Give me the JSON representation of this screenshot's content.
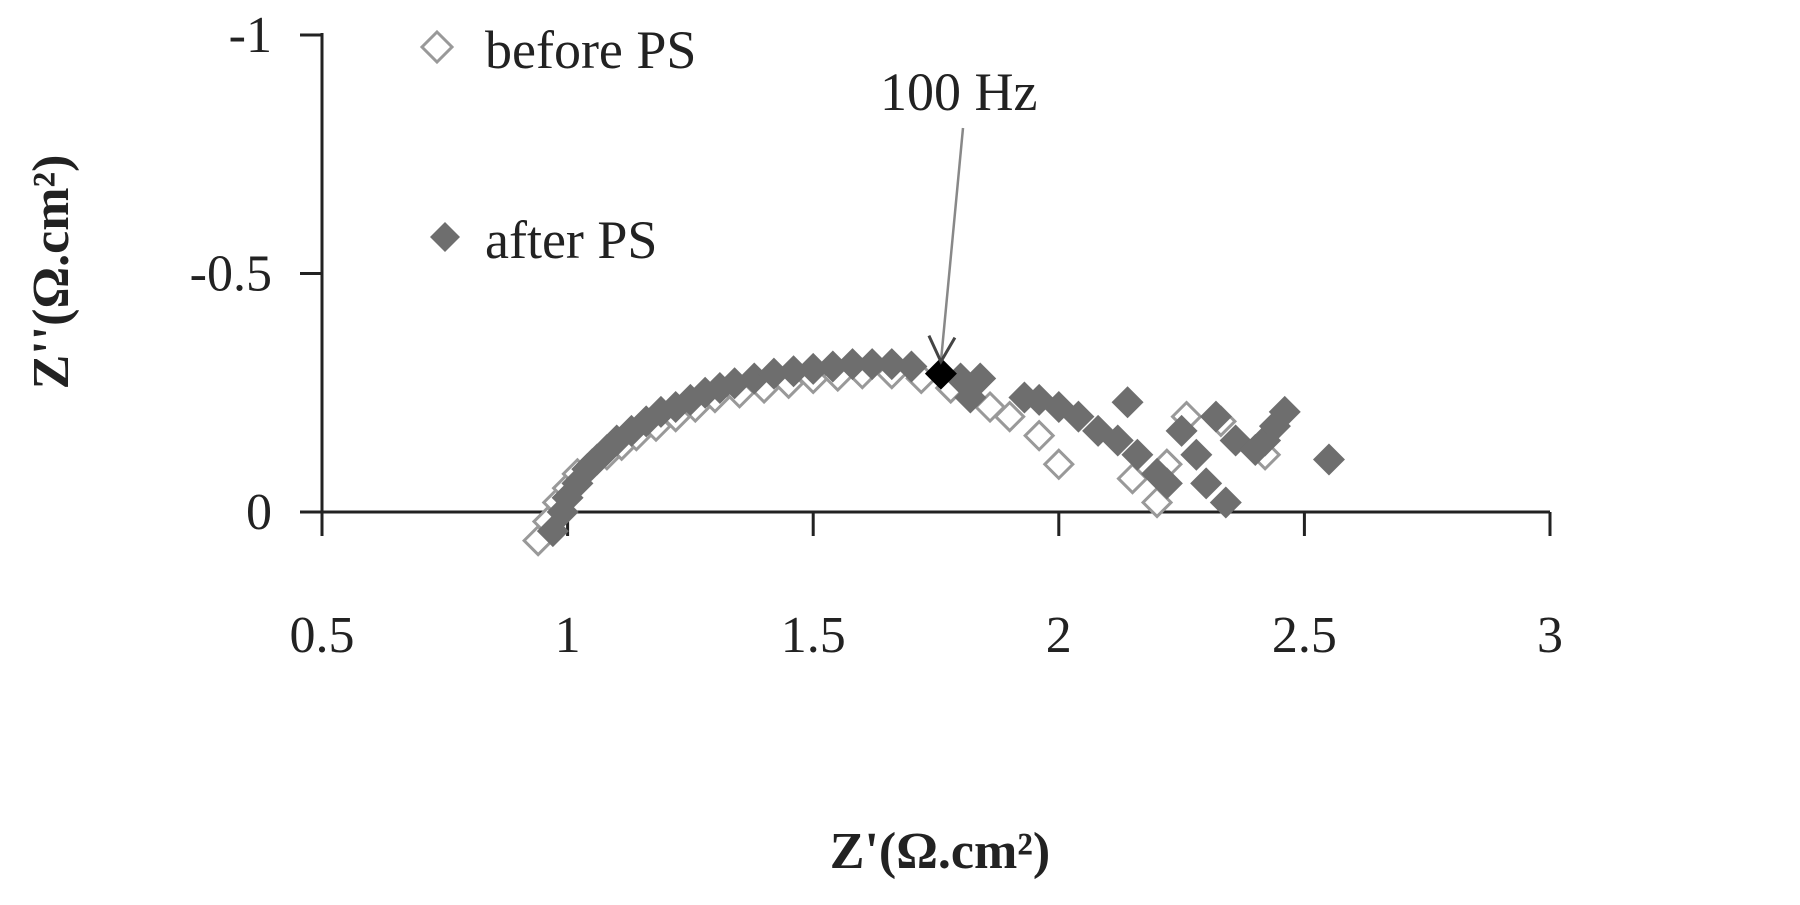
{
  "chart_data": {
    "type": "scatter",
    "xlabel": "Z'(Ω.cm²)",
    "ylabel": "Z''(Ω.cm²)",
    "xlim": [
      0.5,
      3
    ],
    "ylim": [
      0,
      -1
    ],
    "x_ticks": [
      "0.5",
      "1",
      "1.5",
      "2",
      "2.5",
      "3"
    ],
    "y_ticks": [
      "-1",
      "-0.5",
      "0"
    ],
    "grid": false,
    "legend_position": "top-left",
    "annotation": {
      "text": "100 Hz",
      "x": 1.76,
      "y": -0.29,
      "color": "#000000"
    },
    "series": [
      {
        "name": "before PS",
        "marker": "hollow-diamond",
        "color": "#999999",
        "points": [
          [
            0.94,
            0.06
          ],
          [
            0.96,
            0.02
          ],
          [
            0.98,
            -0.02
          ],
          [
            1.0,
            -0.05
          ],
          [
            1.02,
            -0.08
          ],
          [
            1.05,
            -0.1
          ],
          [
            1.08,
            -0.12
          ],
          [
            1.11,
            -0.14
          ],
          [
            1.14,
            -0.16
          ],
          [
            1.18,
            -0.18
          ],
          [
            1.22,
            -0.2
          ],
          [
            1.26,
            -0.22
          ],
          [
            1.3,
            -0.24
          ],
          [
            1.35,
            -0.25
          ],
          [
            1.4,
            -0.26
          ],
          [
            1.45,
            -0.27
          ],
          [
            1.5,
            -0.28
          ],
          [
            1.55,
            -0.285
          ],
          [
            1.6,
            -0.29
          ],
          [
            1.66,
            -0.29
          ],
          [
            1.72,
            -0.28
          ],
          [
            1.78,
            -0.26
          ],
          [
            1.86,
            -0.22
          ],
          [
            1.9,
            -0.2
          ],
          [
            1.96,
            -0.16
          ],
          [
            2.0,
            -0.1
          ],
          [
            2.15,
            -0.07
          ],
          [
            2.2,
            -0.02
          ],
          [
            2.22,
            -0.1
          ],
          [
            2.26,
            -0.2
          ],
          [
            2.33,
            -0.19
          ],
          [
            2.42,
            -0.12
          ]
        ]
      },
      {
        "name": "after PS",
        "marker": "filled-diamond",
        "color": "#6e6e6e",
        "points": [
          [
            0.97,
            0.04
          ],
          [
            0.99,
            0.0
          ],
          [
            1.0,
            -0.03
          ],
          [
            1.02,
            -0.06
          ],
          [
            1.04,
            -0.09
          ],
          [
            1.06,
            -0.11
          ],
          [
            1.08,
            -0.13
          ],
          [
            1.1,
            -0.15
          ],
          [
            1.13,
            -0.17
          ],
          [
            1.16,
            -0.19
          ],
          [
            1.19,
            -0.21
          ],
          [
            1.22,
            -0.22
          ],
          [
            1.25,
            -0.235
          ],
          [
            1.28,
            -0.25
          ],
          [
            1.31,
            -0.26
          ],
          [
            1.34,
            -0.27
          ],
          [
            1.38,
            -0.28
          ],
          [
            1.42,
            -0.29
          ],
          [
            1.46,
            -0.295
          ],
          [
            1.5,
            -0.3
          ],
          [
            1.54,
            -0.305
          ],
          [
            1.58,
            -0.31
          ],
          [
            1.62,
            -0.31
          ],
          [
            1.66,
            -0.31
          ],
          [
            1.7,
            -0.305
          ],
          [
            1.8,
            -0.28
          ],
          [
            1.84,
            -0.28
          ],
          [
            1.82,
            -0.24
          ],
          [
            1.93,
            -0.24
          ],
          [
            1.96,
            -0.235
          ],
          [
            2.0,
            -0.22
          ],
          [
            2.04,
            -0.2
          ],
          [
            2.08,
            -0.17
          ],
          [
            2.12,
            -0.15
          ],
          [
            2.16,
            -0.12
          ],
          [
            2.2,
            -0.08
          ],
          [
            2.22,
            -0.06
          ],
          [
            2.14,
            -0.23
          ],
          [
            2.25,
            -0.17
          ],
          [
            2.28,
            -0.12
          ],
          [
            2.3,
            -0.06
          ],
          [
            2.34,
            -0.02
          ],
          [
            2.32,
            -0.2
          ],
          [
            2.36,
            -0.15
          ],
          [
            2.4,
            -0.13
          ],
          [
            2.42,
            -0.15
          ],
          [
            2.44,
            -0.18
          ],
          [
            2.46,
            -0.21
          ],
          [
            2.55,
            -0.11
          ]
        ]
      }
    ]
  }
}
